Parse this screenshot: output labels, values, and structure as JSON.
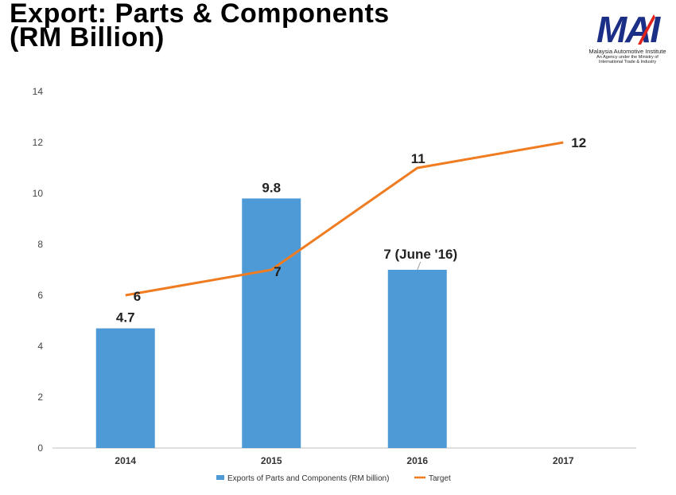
{
  "title_lines": [
    "Export: Parts & Components",
    "(RM Billion)"
  ],
  "logo": {
    "mark": "MAI",
    "org": "Malaysia Automotive Institute",
    "sub_line1": "An Agency under the Ministry of",
    "sub_line2": "International Trade & Industry"
  },
  "colors": {
    "bar": "#4d9ad6",
    "line": "#f07c22",
    "axis": "#bfbfbf",
    "logo": "#1b2f86",
    "logo_accent": "#e2231a"
  },
  "chart_data": {
    "type": "bar",
    "categories": [
      "2014",
      "2015",
      "2016",
      "2017"
    ],
    "ylim": [
      0,
      14
    ],
    "yticks": [
      0,
      2,
      4,
      6,
      8,
      10,
      12,
      14
    ],
    "grid": false,
    "legend": "bottom",
    "series": [
      {
        "name": "Exports of Parts and Components (RM billion)",
        "type": "bar",
        "values": [
          4.7,
          9.8,
          7,
          null
        ],
        "labels": [
          "4.7",
          "9.8",
          "7 (June '16)",
          ""
        ]
      },
      {
        "name": "Target",
        "type": "line",
        "values": [
          6,
          7,
          11,
          12
        ],
        "labels": [
          "6",
          "7",
          "11",
          "12"
        ]
      }
    ]
  }
}
